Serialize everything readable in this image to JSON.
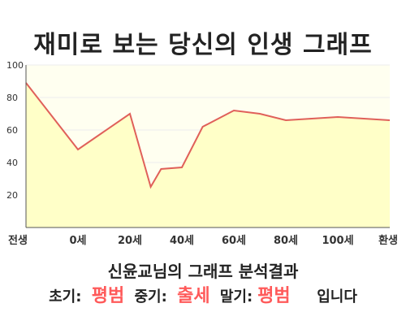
{
  "title": "재미로 보는 당신의 인생 그래프",
  "colors": {
    "line": "#e0605a",
    "fill": "#ffffc8",
    "plot_bg": "#fffff0",
    "grid": "#eeeeee",
    "axis": "#555555",
    "highlight": "#ff5a5a"
  },
  "chart_data": {
    "type": "area",
    "title": "재미로 보는 당신의 인생 그래프",
    "x_ticks": [
      "전생",
      "0세",
      "20세",
      "40세",
      "60세",
      "80세",
      "100세",
      "환생"
    ],
    "y_ticks": [
      "20",
      "40",
      "60",
      "80",
      "100"
    ],
    "ylim": [
      0,
      100
    ],
    "xlim": [
      -20,
      120
    ],
    "x": [
      -20,
      0,
      20,
      28,
      32,
      40,
      48,
      60,
      70,
      80,
      90,
      100,
      110,
      120
    ],
    "values": [
      89,
      48,
      70,
      25,
      36,
      37,
      62,
      72,
      70,
      66,
      67,
      68,
      67,
      66
    ],
    "grid": true,
    "legend": "none"
  },
  "result": {
    "heading": "신윤교님의 그래프 분석결과",
    "early_label": "초기:",
    "early_value": "평범",
    "middle_label": "중기:",
    "middle_value": "출세",
    "late_label": "말기:",
    "late_value": "평범",
    "suffix": "입니다"
  }
}
